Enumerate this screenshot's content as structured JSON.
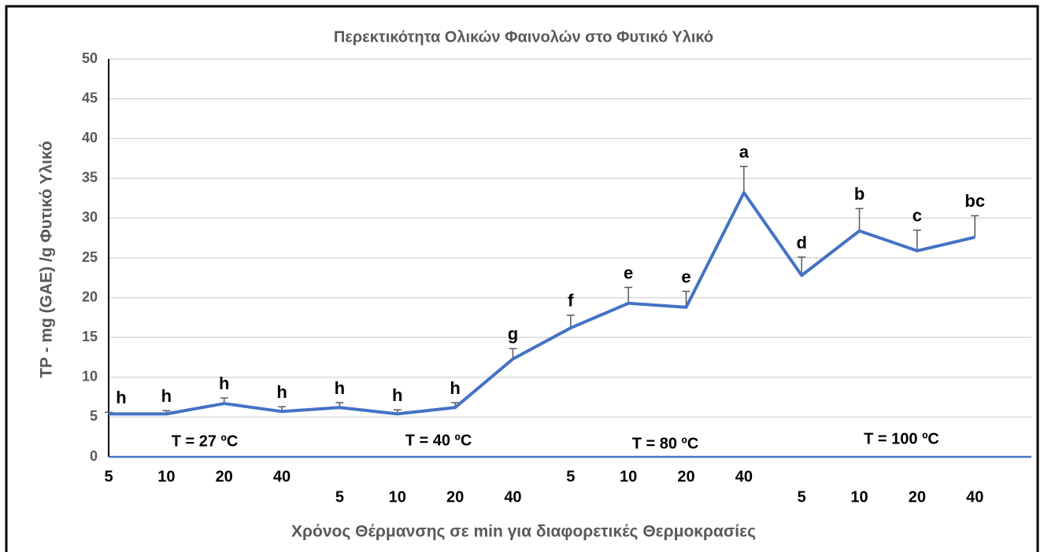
{
  "chart_data": {
    "type": "line",
    "title": "Περεκτικότητα Ολικών Φαινολών στο Φυτικό Υλικό",
    "xlabel": "Χρόνος Θέρμανσης σε min για διαφορετικές Θερμοκρασίες",
    "ylabel": "TP - mg (GAE) /g Φυτικό Υλικό",
    "categories": [
      "5",
      "10",
      "20",
      "40",
      "5",
      "10",
      "20",
      "40",
      "5",
      "10",
      "20",
      "40",
      "5",
      "10",
      "20",
      "40"
    ],
    "series": [
      {
        "color": "#4472c4",
        "values": [
          5.4,
          5.4,
          6.7,
          5.7,
          6.2,
          5.4,
          6.2,
          12.3,
          16.2,
          19.3,
          18.8,
          33.2,
          22.8,
          28.4,
          25.9,
          27.6
        ],
        "errors": [
          0.2,
          0.4,
          0.7,
          0.6,
          0.6,
          0.5,
          0.6,
          1.3,
          1.6,
          2.0,
          2.0,
          3.3,
          2.3,
          2.8,
          2.6,
          2.7
        ]
      }
    ],
    "annotations": [
      "h",
      "h",
      "h",
      "h",
      "h",
      "h",
      "h",
      "g",
      "f",
      "e",
      "e",
      "a",
      "d",
      "b",
      "c",
      "bc"
    ],
    "groups": [
      "T = 27 ºC",
      "T = 40 ºC",
      "T = 80 ºC",
      "T = 100 ºC"
    ],
    "ylim": [
      0,
      50
    ],
    "yticks": [
      0,
      5,
      10,
      15,
      20,
      25,
      30,
      35,
      40,
      45,
      50
    ],
    "grid": true
  }
}
